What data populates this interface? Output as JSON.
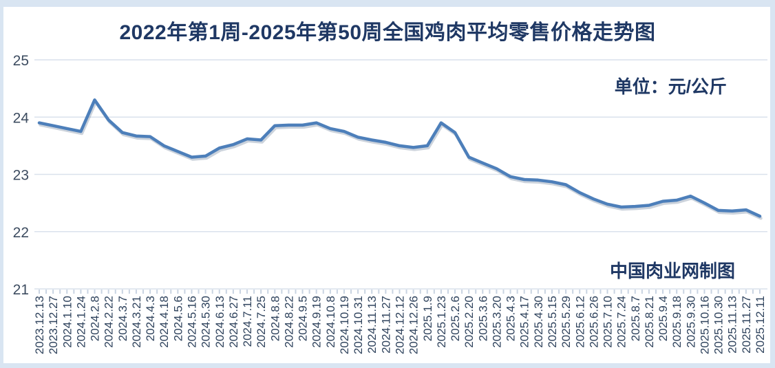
{
  "page": {
    "title": "2022年第1周-2025年第50周全国鸡肉平均零售价格走势图",
    "unit_label": "单位：元/公斤",
    "credit": "中国肉业网制图"
  },
  "colors": {
    "title_text": "#1f3864",
    "line": "#4d7fba",
    "line_shadow": "rgba(110,130,155,0.35)",
    "grid": "#d9e1ec",
    "tick": "#c9d4e2",
    "y_label": "#3d4c60",
    "x_label": "#2e425c",
    "frame": "#d9e5f2"
  },
  "chart_data": {
    "type": "line",
    "title": "2022年第1周-2025年第50周全国鸡肉平均零售价格走势图",
    "unit": "元/公斤",
    "xlabel": "",
    "ylabel": "",
    "ylim": [
      21,
      25
    ],
    "yticks": [
      21,
      22,
      23,
      24,
      25
    ],
    "grid": "horizontal",
    "legend": "none",
    "x_label_rotation": -90,
    "x": [
      "2023.12.13",
      "2023.12.27",
      "2024.1.10",
      "2024.1.24",
      "2024.2.8",
      "2024.2.22",
      "2024.3.7",
      "2024.3.21",
      "2024.4.3",
      "2024.4.18",
      "2024.5.6",
      "2024.5.16",
      "2024.5.30",
      "2024.6.13",
      "2024.6.27",
      "2024.7.11",
      "2024.7.25",
      "2024.8.8",
      "2024.8.22",
      "2024.9.5",
      "2024.9.19",
      "2024.10.8",
      "2024.10.19",
      "2024.10.31",
      "2024.11.13",
      "2024.11.27",
      "2024.12.12",
      "2024.12.26",
      "2025.1.9",
      "2025.1.23",
      "2025.2.6",
      "2025.2.20",
      "2025.3.6",
      "2025.3.20",
      "2025.4.3",
      "2025.4.17",
      "2025.4.30",
      "2025.5.15",
      "2025.5.29",
      "2025.6.12",
      "2025.6.26",
      "2025.7.10",
      "2025.7.24",
      "2025.8.7",
      "2025.8.21",
      "2025.9.4",
      "2025.9.18",
      "2025.9.30",
      "2025.10.16",
      "2025.10.30",
      "2025.11.13",
      "2025.11.27",
      "2025.12.11"
    ],
    "values": [
      23.9,
      23.85,
      23.8,
      23.75,
      24.3,
      23.95,
      23.73,
      23.67,
      23.66,
      23.5,
      23.4,
      23.3,
      23.32,
      23.46,
      23.52,
      23.62,
      23.6,
      23.85,
      23.86,
      23.86,
      23.9,
      23.8,
      23.75,
      23.65,
      23.6,
      23.56,
      23.5,
      23.47,
      23.5,
      23.9,
      23.73,
      23.3,
      23.2,
      23.1,
      22.96,
      22.91,
      22.9,
      22.87,
      22.82,
      22.68,
      22.57,
      22.48,
      22.43,
      22.44,
      22.46,
      22.53,
      22.55,
      22.62,
      22.5,
      22.37,
      22.36,
      22.38,
      22.27
    ]
  }
}
